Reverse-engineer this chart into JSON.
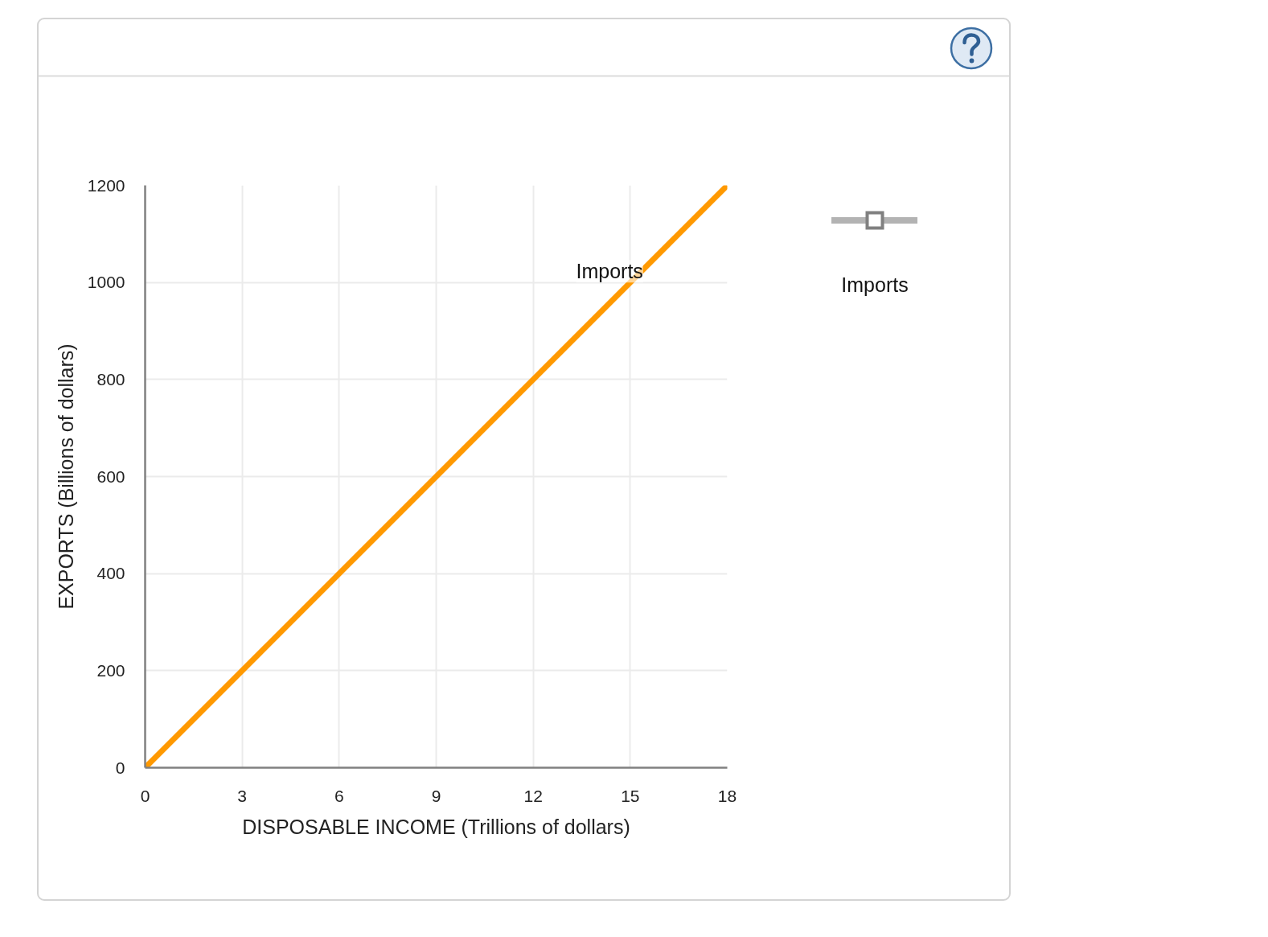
{
  "chart_data": {
    "type": "line",
    "xlabel": "DISPOSABLE INCOME (Trillions of dollars)",
    "ylabel": "EXPORTS (Billions of dollars)",
    "x": [
      0,
      18
    ],
    "series": [
      {
        "color": "#ff9900",
        "values": [
          0,
          1200
        ]
      }
    ],
    "xlim": [
      0,
      18
    ],
    "ylim": [
      0,
      1200
    ],
    "xticks": [
      0,
      3,
      6,
      9,
      12,
      15,
      18
    ],
    "yticks": [
      0,
      200,
      400,
      600,
      800,
      1000,
      1200
    ],
    "grid": true,
    "line_style": "solid",
    "annotations": [
      {
        "text": "Imports",
        "x": 15,
        "y": 1000
      },
      "Imports"
    ]
  }
}
